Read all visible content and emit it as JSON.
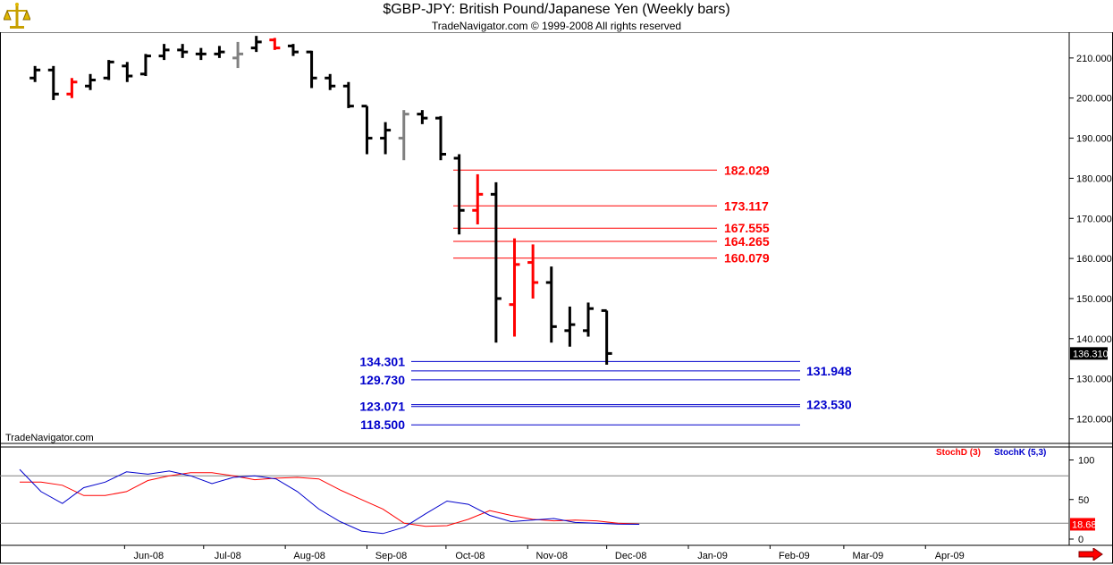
{
  "header": {
    "title": "$GBP-JPY:  British Pound/Japanese Yen  (Weekly bars)",
    "subtitle": "TradeNavigator.com © 1999-2008 All rights reserved"
  },
  "watermark": "TradeNavigator.com",
  "colors": {
    "bar_black": "#000000",
    "bar_red": "#ff0000",
    "bar_gray": "#808080",
    "resistance": "#ff0000",
    "support": "#0000cc",
    "stoch_d": "#ff0000",
    "stoch_k": "#0000cc",
    "price_tag_bg": "#000000"
  },
  "chart_data": [
    {
      "type": "ohlc",
      "title": "$GBP-JPY:  British Pound/Japanese Yen  (Weekly bars)",
      "x_ticks": [
        "Jun-08",
        "Jul-08",
        "Aug-08",
        "Sep-08",
        "Oct-08",
        "Nov-08",
        "Dec-08",
        "Jan-09",
        "Feb-09",
        "Mar-09",
        "Apr-09"
      ],
      "y_ticks": [
        "120.000",
        "130.000",
        "140.000",
        "150.000",
        "160.000",
        "170.000",
        "180.000",
        "190.000",
        "200.000",
        "210.000"
      ],
      "ylim": [
        113,
        214
      ],
      "last_price": "136.310",
      "bars": [
        {
          "date": "2008-04-28",
          "o": 205,
          "h": 208,
          "l": 204,
          "c": 207,
          "color": "black"
        },
        {
          "date": "2008-05-05",
          "o": 207,
          "h": 208,
          "l": 199.5,
          "c": 201,
          "color": "black"
        },
        {
          "date": "2008-05-12",
          "o": 201,
          "h": 205,
          "l": 200,
          "c": 204,
          "color": "red"
        },
        {
          "date": "2008-05-19",
          "o": 203,
          "h": 206,
          "l": 202,
          "c": 204.5,
          "color": "black"
        },
        {
          "date": "2008-05-26",
          "o": 205,
          "h": 209.5,
          "l": 204.5,
          "c": 209,
          "color": "black"
        },
        {
          "date": "2008-06-02",
          "o": 208,
          "h": 209,
          "l": 204,
          "c": 205.5,
          "color": "black"
        },
        {
          "date": "2008-06-09",
          "o": 206,
          "h": 211,
          "l": 205.5,
          "c": 210.5,
          "color": "black"
        },
        {
          "date": "2008-06-16",
          "o": 210.5,
          "h": 213.5,
          "l": 209.5,
          "c": 212,
          "color": "black"
        },
        {
          "date": "2008-06-23",
          "o": 212,
          "h": 213.5,
          "l": 210,
          "c": 211.5,
          "color": "black"
        },
        {
          "date": "2008-06-30",
          "o": 211,
          "h": 212.5,
          "l": 209.5,
          "c": 211,
          "color": "black"
        },
        {
          "date": "2008-07-07",
          "o": 211,
          "h": 213,
          "l": 210,
          "c": 211.5,
          "color": "black"
        },
        {
          "date": "2008-07-14",
          "o": 210,
          "h": 214,
          "l": 207.5,
          "c": 211,
          "color": "gray"
        },
        {
          "date": "2008-07-21",
          "o": 212.5,
          "h": 215.5,
          "l": 211.5,
          "c": 214,
          "color": "black"
        },
        {
          "date": "2008-07-28",
          "o": 214.5,
          "h": 215,
          "l": 212,
          "c": 212.5,
          "color": "red"
        },
        {
          "date": "2008-08-04",
          "o": 213,
          "h": 213.5,
          "l": 210.5,
          "c": 211.5,
          "color": "black"
        },
        {
          "date": "2008-08-11",
          "o": 211.5,
          "h": 211.8,
          "l": 202.5,
          "c": 205,
          "color": "black"
        },
        {
          "date": "2008-08-18",
          "o": 205,
          "h": 206,
          "l": 202,
          "c": 203,
          "color": "black"
        },
        {
          "date": "2008-08-25",
          "o": 203,
          "h": 204,
          "l": 197.5,
          "c": 198,
          "color": "black"
        },
        {
          "date": "2008-09-01",
          "o": 198,
          "h": 198,
          "l": 186,
          "c": 190,
          "color": "black"
        },
        {
          "date": "2008-09-08",
          "o": 190,
          "h": 194,
          "l": 186,
          "c": 192,
          "color": "black"
        },
        {
          "date": "2008-09-15",
          "o": 190,
          "h": 197,
          "l": 184.5,
          "c": 196,
          "color": "gray"
        },
        {
          "date": "2008-09-22",
          "o": 196,
          "h": 197,
          "l": 193.5,
          "c": 195,
          "color": "black"
        },
        {
          "date": "2008-09-29",
          "o": 195,
          "h": 195.5,
          "l": 184.5,
          "c": 186,
          "color": "black"
        },
        {
          "date": "2008-10-06",
          "o": 185,
          "h": 186,
          "l": 166,
          "c": 172,
          "color": "black"
        },
        {
          "date": "2008-10-13",
          "o": 172,
          "h": 181,
          "l": 168.5,
          "c": 176,
          "color": "red"
        },
        {
          "date": "2008-10-20",
          "o": 176,
          "h": 179,
          "l": 139,
          "c": 150,
          "color": "black"
        },
        {
          "date": "2008-10-27",
          "o": 148.5,
          "h": 165,
          "l": 140.5,
          "c": 158.5,
          "color": "red"
        },
        {
          "date": "2008-11-03",
          "o": 159,
          "h": 163.5,
          "l": 150,
          "c": 154,
          "color": "red"
        },
        {
          "date": "2008-11-10",
          "o": 154,
          "h": 158,
          "l": 139,
          "c": 143,
          "color": "black"
        },
        {
          "date": "2008-11-17",
          "o": 142,
          "h": 148,
          "l": 138,
          "c": 143.5,
          "color": "black"
        },
        {
          "date": "2008-11-24",
          "o": 142,
          "h": 149,
          "l": 140.5,
          "c": 147.5,
          "color": "black"
        },
        {
          "date": "2008-12-01",
          "o": 147,
          "h": 147,
          "l": 133.5,
          "c": 136.3,
          "color": "black"
        }
      ],
      "resistance_levels": [
        "182.029",
        "173.117",
        "167.555",
        "164.265",
        "160.079"
      ],
      "support_levels_left": [
        "134.301",
        "129.730",
        "123.071",
        "118.500"
      ],
      "support_levels_right": [
        "131.948",
        "123.530"
      ]
    },
    {
      "type": "line",
      "title": "",
      "legend": [
        "StochD (3)",
        "StochK (5,3)"
      ],
      "y_ticks": [
        "100",
        "50",
        "0"
      ],
      "ylim": [
        -8,
        110
      ],
      "ref_lines": [
        80,
        20
      ],
      "last_value": "18.68",
      "series": [
        {
          "name": "StochD (3)",
          "values": [
            72,
            72,
            68,
            55,
            55,
            60,
            74,
            80,
            84,
            84,
            80,
            75,
            77,
            78,
            76,
            62,
            50,
            38,
            20,
            16,
            17,
            25,
            36,
            30,
            25,
            23,
            24,
            23,
            20,
            19
          ]
        },
        {
          "name": "StochK (5,3)",
          "values": [
            88,
            60,
            45,
            65,
            72,
            85,
            82,
            86,
            80,
            70,
            78,
            80,
            76,
            60,
            38,
            22,
            10,
            7,
            15,
            32,
            48,
            44,
            30,
            22,
            24,
            26,
            21,
            20,
            19,
            18.68
          ]
        }
      ]
    }
  ]
}
